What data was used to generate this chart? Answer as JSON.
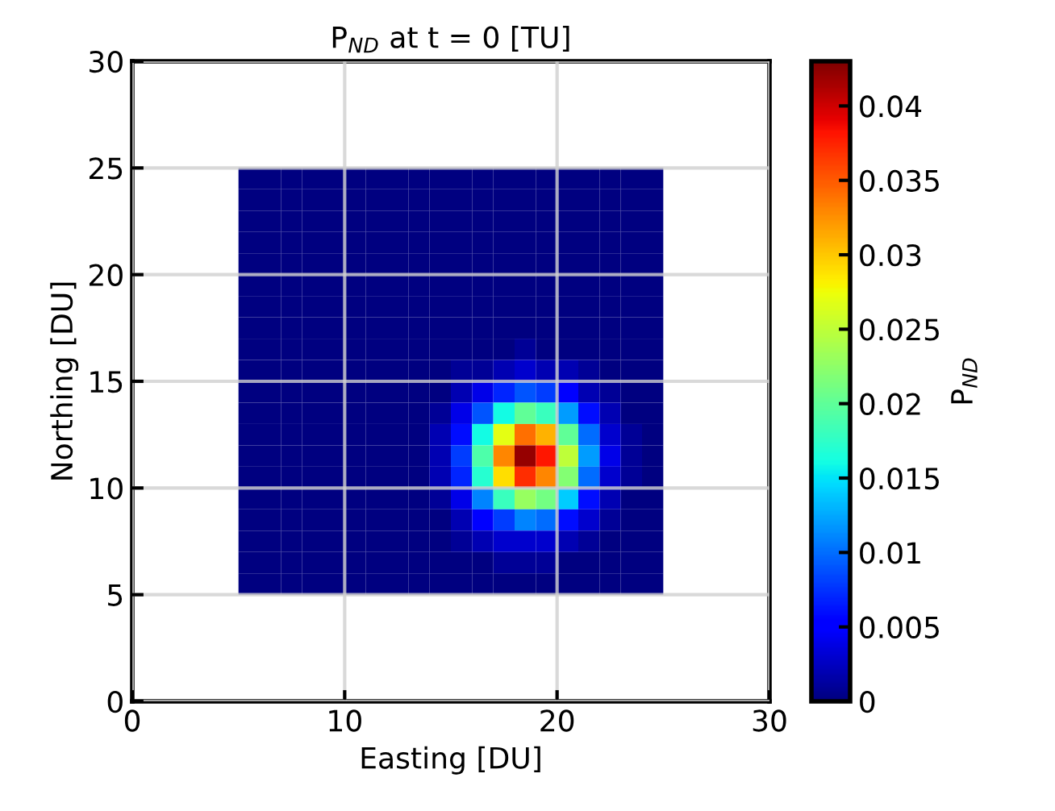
{
  "chart_data": {
    "type": "heatmap",
    "title": "P$_{ND}$ at t = 0 [TU]",
    "xlabel": "Easting [DU]",
    "ylabel": "Northing [DU]",
    "clabel": "P$_{ND}$",
    "x": [
      5.5,
      6.5,
      7.5,
      8.5,
      9.5,
      10.5,
      11.5,
      12.5,
      13.5,
      14.5,
      15.5,
      16.5,
      17.5,
      18.5,
      19.5,
      20.5,
      21.5,
      22.5,
      23.5,
      24.5
    ],
    "y": [
      24.5,
      23.5,
      22.5,
      21.5,
      20.5,
      19.5,
      18.5,
      17.5,
      16.5,
      15.5,
      14.5,
      13.5,
      12.5,
      11.5,
      10.5,
      9.5,
      8.5,
      7.5,
      6.5,
      5.5
    ],
    "cells": [
      [
        0,
        0,
        0,
        0,
        0,
        0,
        0,
        0,
        0,
        0,
        0,
        0,
        0,
        0,
        0,
        0,
        0,
        0,
        0,
        0
      ],
      [
        0,
        0,
        0,
        0,
        0,
        0,
        0,
        0,
        0,
        0,
        0,
        0,
        0,
        0,
        0,
        0,
        0,
        0,
        0,
        0
      ],
      [
        0,
        0,
        0,
        0,
        0,
        0,
        0,
        0,
        0,
        0,
        0,
        0,
        0,
        0,
        0,
        0,
        0,
        0,
        0,
        0
      ],
      [
        0,
        0,
        0,
        0,
        0,
        0,
        0,
        0,
        0,
        0,
        0,
        0,
        0,
        0,
        0,
        0,
        0,
        0,
        0,
        0
      ],
      [
        0,
        0,
        0,
        0,
        0,
        0,
        0,
        0,
        0,
        0,
        0,
        0,
        0,
        0,
        0,
        0,
        0,
        0,
        0,
        0
      ],
      [
        0,
        0,
        0,
        0,
        0,
        0,
        0,
        0,
        0,
        0,
        0,
        0,
        0,
        0,
        0,
        0,
        0,
        0,
        0,
        0
      ],
      [
        0,
        0,
        0,
        0,
        0,
        0,
        0,
        0,
        0,
        0,
        0,
        0,
        0,
        0,
        0,
        0,
        0,
        0,
        0,
        0
      ],
      [
        0,
        0,
        0,
        0,
        0,
        0,
        0,
        0,
        0,
        0,
        0,
        0,
        0,
        0,
        0,
        0,
        0,
        0,
        0,
        0
      ],
      [
        0,
        0,
        0,
        0,
        0,
        0,
        0,
        0,
        0,
        0,
        0,
        0,
        0,
        0.001,
        0,
        0,
        0,
        0,
        0,
        0
      ],
      [
        0,
        0,
        0,
        0,
        0,
        0,
        0,
        0,
        0,
        0,
        0.001,
        0.001,
        0.002,
        0.003,
        0.002,
        0.002,
        0.001,
        0,
        0,
        0
      ],
      [
        0,
        0,
        0,
        0,
        0,
        0,
        0,
        0,
        0,
        0,
        0.002,
        0.004,
        0.007,
        0.009,
        0.008,
        0.005,
        0.002,
        0.001,
        0,
        0
      ],
      [
        0,
        0,
        0,
        0,
        0,
        0,
        0,
        0,
        0,
        0.001,
        0.004,
        0.009,
        0.016,
        0.02,
        0.018,
        0.012,
        0.006,
        0.002,
        0,
        0
      ],
      [
        0,
        0,
        0,
        0,
        0,
        0,
        0,
        0,
        0,
        0.002,
        0.006,
        0.016,
        0.027,
        0.034,
        0.031,
        0.02,
        0.01,
        0.003,
        0.001,
        0
      ],
      [
        0,
        0,
        0,
        0,
        0,
        0,
        0,
        0,
        0,
        0.002,
        0.008,
        0.019,
        0.033,
        0.042,
        0.038,
        0.025,
        0.012,
        0.004,
        0.001,
        0
      ],
      [
        0,
        0,
        0,
        0,
        0,
        0,
        0,
        0,
        0,
        0.002,
        0.007,
        0.017,
        0.029,
        0.037,
        0.033,
        0.022,
        0.01,
        0.003,
        0.001,
        0
      ],
      [
        0,
        0,
        0,
        0,
        0,
        0,
        0,
        0,
        0,
        0.001,
        0.004,
        0.011,
        0.018,
        0.023,
        0.021,
        0.014,
        0.006,
        0.002,
        0,
        0
      ],
      [
        0,
        0,
        0,
        0,
        0,
        0,
        0,
        0,
        0,
        0,
        0.002,
        0.005,
        0.008,
        0.011,
        0.01,
        0.006,
        0.003,
        0.001,
        0,
        0
      ],
      [
        0,
        0,
        0,
        0,
        0,
        0,
        0,
        0,
        0,
        0,
        0.001,
        0.002,
        0.003,
        0.003,
        0.003,
        0.002,
        0.001,
        0,
        0,
        0
      ],
      [
        0,
        0,
        0,
        0,
        0,
        0,
        0,
        0,
        0,
        0,
        0,
        0,
        0.001,
        0.001,
        0.001,
        0,
        0,
        0,
        0,
        0
      ],
      [
        0,
        0,
        0,
        0,
        0,
        0,
        0,
        0,
        0,
        0,
        0,
        0,
        0,
        0,
        0,
        0,
        0,
        0,
        0,
        0
      ]
    ],
    "xlim": [
      0,
      30
    ],
    "ylim": [
      0,
      30
    ],
    "xticks": [
      0,
      10,
      20,
      30
    ],
    "yticks": [
      0,
      5,
      10,
      15,
      20,
      25,
      30
    ],
    "clim": [
      0,
      0.043
    ],
    "cticks": [
      0,
      0.005,
      0.01,
      0.015,
      0.02,
      0.025,
      0.03,
      0.035,
      0.04
    ],
    "grid": true
  }
}
